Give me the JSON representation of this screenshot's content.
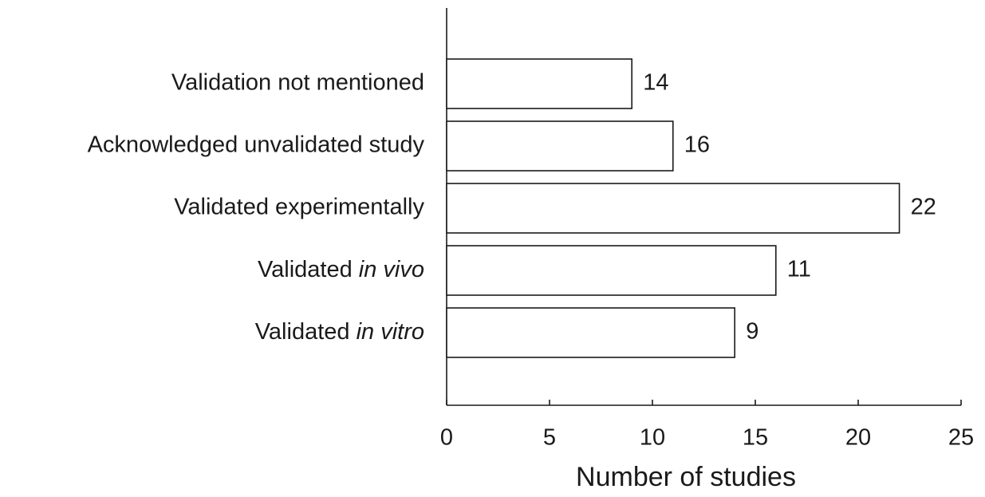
{
  "chart_data": {
    "type": "bar",
    "orientation": "horizontal",
    "categories": [
      "Validation not mentioned",
      "Acknowledged unvalidated study",
      "Validated experimentally",
      "Validated in vivo",
      "Validated in vitro"
    ],
    "italic_terms": [
      "in vivo",
      "in vitro"
    ],
    "values": [
      9,
      11,
      22,
      16,
      14
    ],
    "annotations": [
      "14",
      "16",
      "22",
      "11",
      "9"
    ],
    "color": "#ffffff",
    "xlabel": "Number of studies",
    "xlim": [
      0,
      25
    ],
    "xticks": [
      0,
      5,
      10,
      15,
      20,
      25
    ],
    "grid": false
  }
}
